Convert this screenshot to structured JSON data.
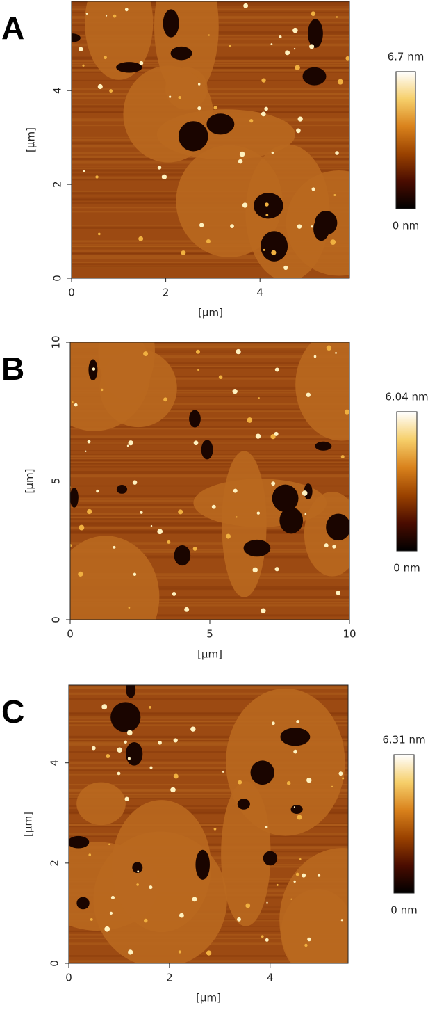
{
  "panels": [
    {
      "label": "A",
      "xlabel": "[µm]",
      "ylabel": "[µm]",
      "xlim": [
        0,
        5.9
      ],
      "ylim": [
        0,
        5.9
      ],
      "xticks": [
        0,
        2,
        4
      ],
      "yticks": [
        0,
        2,
        4
      ],
      "colorbar": {
        "max": "6.7 nm",
        "min": "0 nm"
      }
    },
    {
      "label": "B",
      "xlabel": "[µm]",
      "ylabel": "[µm]",
      "xlim": [
        0,
        10
      ],
      "ylim": [
        0,
        10
      ],
      "xticks": [
        0,
        5,
        10
      ],
      "yticks": [
        0,
        5,
        10
      ],
      "colorbar": {
        "max": "6.04 nm",
        "min": "0 nm"
      }
    },
    {
      "label": "C",
      "xlabel": "[µm]",
      "ylabel": "[µm]",
      "xlim": [
        0,
        5.55
      ],
      "ylim": [
        0,
        5.55
      ],
      "xticks": [
        0,
        2,
        4
      ],
      "yticks": [
        0,
        2,
        4
      ],
      "colorbar": {
        "max": "6.31 nm",
        "min": "0 nm"
      }
    }
  ],
  "colormap": [
    "#000000",
    "#4a0c00",
    "#9a4200",
    "#d9821c",
    "#f6cf6a",
    "#ffffff"
  ]
}
